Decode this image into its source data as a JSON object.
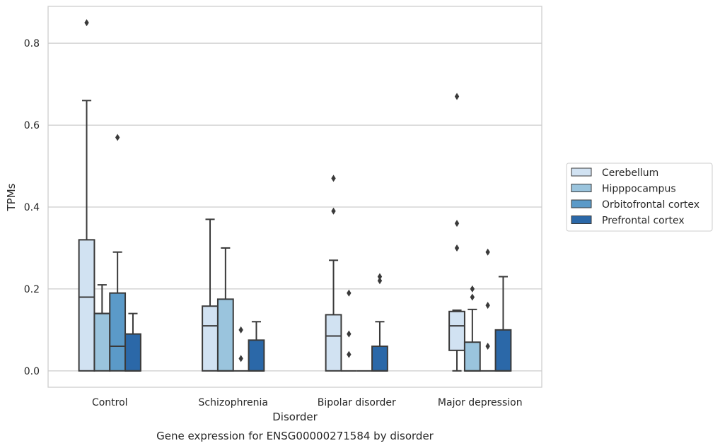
{
  "chart_data": {
    "type": "box",
    "title": "Gene expression for ENSG00000271584 by disorder",
    "xlabel": "Disorder",
    "ylabel": "TPMs",
    "ylim": [
      -0.04,
      0.89
    ],
    "yticks": [
      0.0,
      0.2,
      0.4,
      0.6,
      0.8
    ],
    "ytick_labels": [
      "0.0",
      "0.2",
      "0.4",
      "0.6",
      "0.8"
    ],
    "categories": [
      "Control",
      "Schizophrenia",
      "Bipolar disorder",
      "Major depression"
    ],
    "grid": "horizontal",
    "legend_position": "right",
    "series": [
      {
        "name": "Cerebellum",
        "color": "#d1e2f2",
        "boxes": [
          {
            "q1": 0.0,
            "median": 0.18,
            "q3": 0.32,
            "whislo": 0.0,
            "whishi": 0.66,
            "fliers": [
              0.85
            ]
          },
          {
            "q1": 0.0,
            "median": 0.11,
            "q3": 0.158,
            "whislo": 0.0,
            "whishi": 0.37,
            "fliers": []
          },
          {
            "q1": 0.0,
            "median": 0.085,
            "q3": 0.137,
            "whislo": 0.0,
            "whishi": 0.27,
            "fliers": [
              0.39,
              0.47
            ]
          },
          {
            "q1": 0.05,
            "median": 0.11,
            "q3": 0.145,
            "whislo": 0.0,
            "whishi": 0.148,
            "fliers": [
              0.3,
              0.36,
              0.67
            ]
          }
        ]
      },
      {
        "name": "Hipppocampus",
        "color": "#9ac4dd",
        "boxes": [
          {
            "q1": 0.0,
            "median": 0.14,
            "q3": 0.14,
            "whislo": 0.0,
            "whishi": 0.21,
            "fliers": []
          },
          {
            "q1": 0.0,
            "median": 0.0,
            "q3": 0.175,
            "whislo": 0.0,
            "whishi": 0.3,
            "fliers": []
          },
          {
            "q1": 0.0,
            "median": 0.0,
            "q3": 0.0,
            "whislo": 0.0,
            "whishi": 0.0,
            "fliers": [
              0.04,
              0.09,
              0.19
            ]
          },
          {
            "q1": 0.0,
            "median": 0.0,
            "q3": 0.07,
            "whislo": 0.0,
            "whishi": 0.15,
            "fliers": [
              0.18,
              0.2
            ]
          }
        ]
      },
      {
        "name": "Orbitofrontal cortex",
        "color": "#5b9ac8",
        "boxes": [
          {
            "q1": 0.0,
            "median": 0.06,
            "q3": 0.19,
            "whislo": 0.0,
            "whishi": 0.29,
            "fliers": [
              0.57
            ]
          },
          {
            "q1": 0.0,
            "median": 0.0,
            "q3": 0.0,
            "whislo": 0.0,
            "whishi": 0.0,
            "fliers": [
              0.03,
              0.1
            ]
          },
          {
            "q1": 0.0,
            "median": 0.0,
            "q3": 0.0,
            "whislo": 0.0,
            "whishi": 0.0,
            "fliers": []
          },
          {
            "q1": 0.0,
            "median": 0.0,
            "q3": 0.0,
            "whislo": 0.0,
            "whishi": 0.0,
            "fliers": [
              0.06,
              0.16,
              0.29
            ]
          }
        ]
      },
      {
        "name": "Prefrontal cortex",
        "color": "#2b68a8",
        "boxes": [
          {
            "q1": 0.0,
            "median": 0.0,
            "q3": 0.09,
            "whislo": 0.0,
            "whishi": 0.14,
            "fliers": []
          },
          {
            "q1": 0.0,
            "median": 0.0,
            "q3": 0.075,
            "whislo": 0.0,
            "whishi": 0.12,
            "fliers": []
          },
          {
            "q1": 0.0,
            "median": 0.0,
            "q3": 0.06,
            "whislo": 0.0,
            "whishi": 0.12,
            "fliers": [
              0.22,
              0.23
            ]
          },
          {
            "q1": 0.0,
            "median": 0.0,
            "q3": 0.1,
            "whislo": 0.0,
            "whishi": 0.23,
            "fliers": []
          }
        ]
      }
    ]
  }
}
